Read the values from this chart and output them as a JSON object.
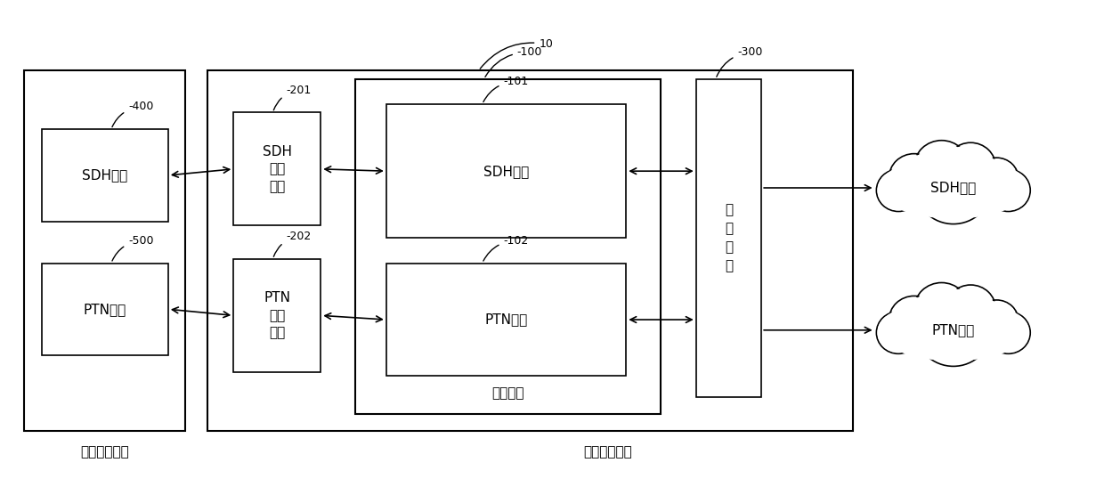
{
  "fig_width": 12.4,
  "fig_height": 5.47,
  "bg_color": "#ffffff",
  "label_10": "10",
  "label_400": "-400",
  "label_500": "-500",
  "label_201": "-201",
  "label_202": "-202",
  "label_100": "-100",
  "label_101": "-101",
  "label_102": "-102",
  "label_300": "-300",
  "text_sdh_service": "SDH业务",
  "text_ptn_service": "PTN业务",
  "text_sdh_iface": "SDH\n业务\n接口",
  "text_ptn_iface": "PTN\n业务\n接口",
  "text_sdh_core": "SDH内核",
  "text_ptn_core": "PTN内核",
  "text_core_device": "核心设备",
  "text_net_iface": "网\n络\n接\n口",
  "text_power_trans": "电力传输设备",
  "text_grid_service": "电网业务系统",
  "text_sdh_network": "SDH网络",
  "text_ptn_network": "PTN网络",
  "font_size_main": 11,
  "font_size_label": 9,
  "font_size_annot": 9.5
}
